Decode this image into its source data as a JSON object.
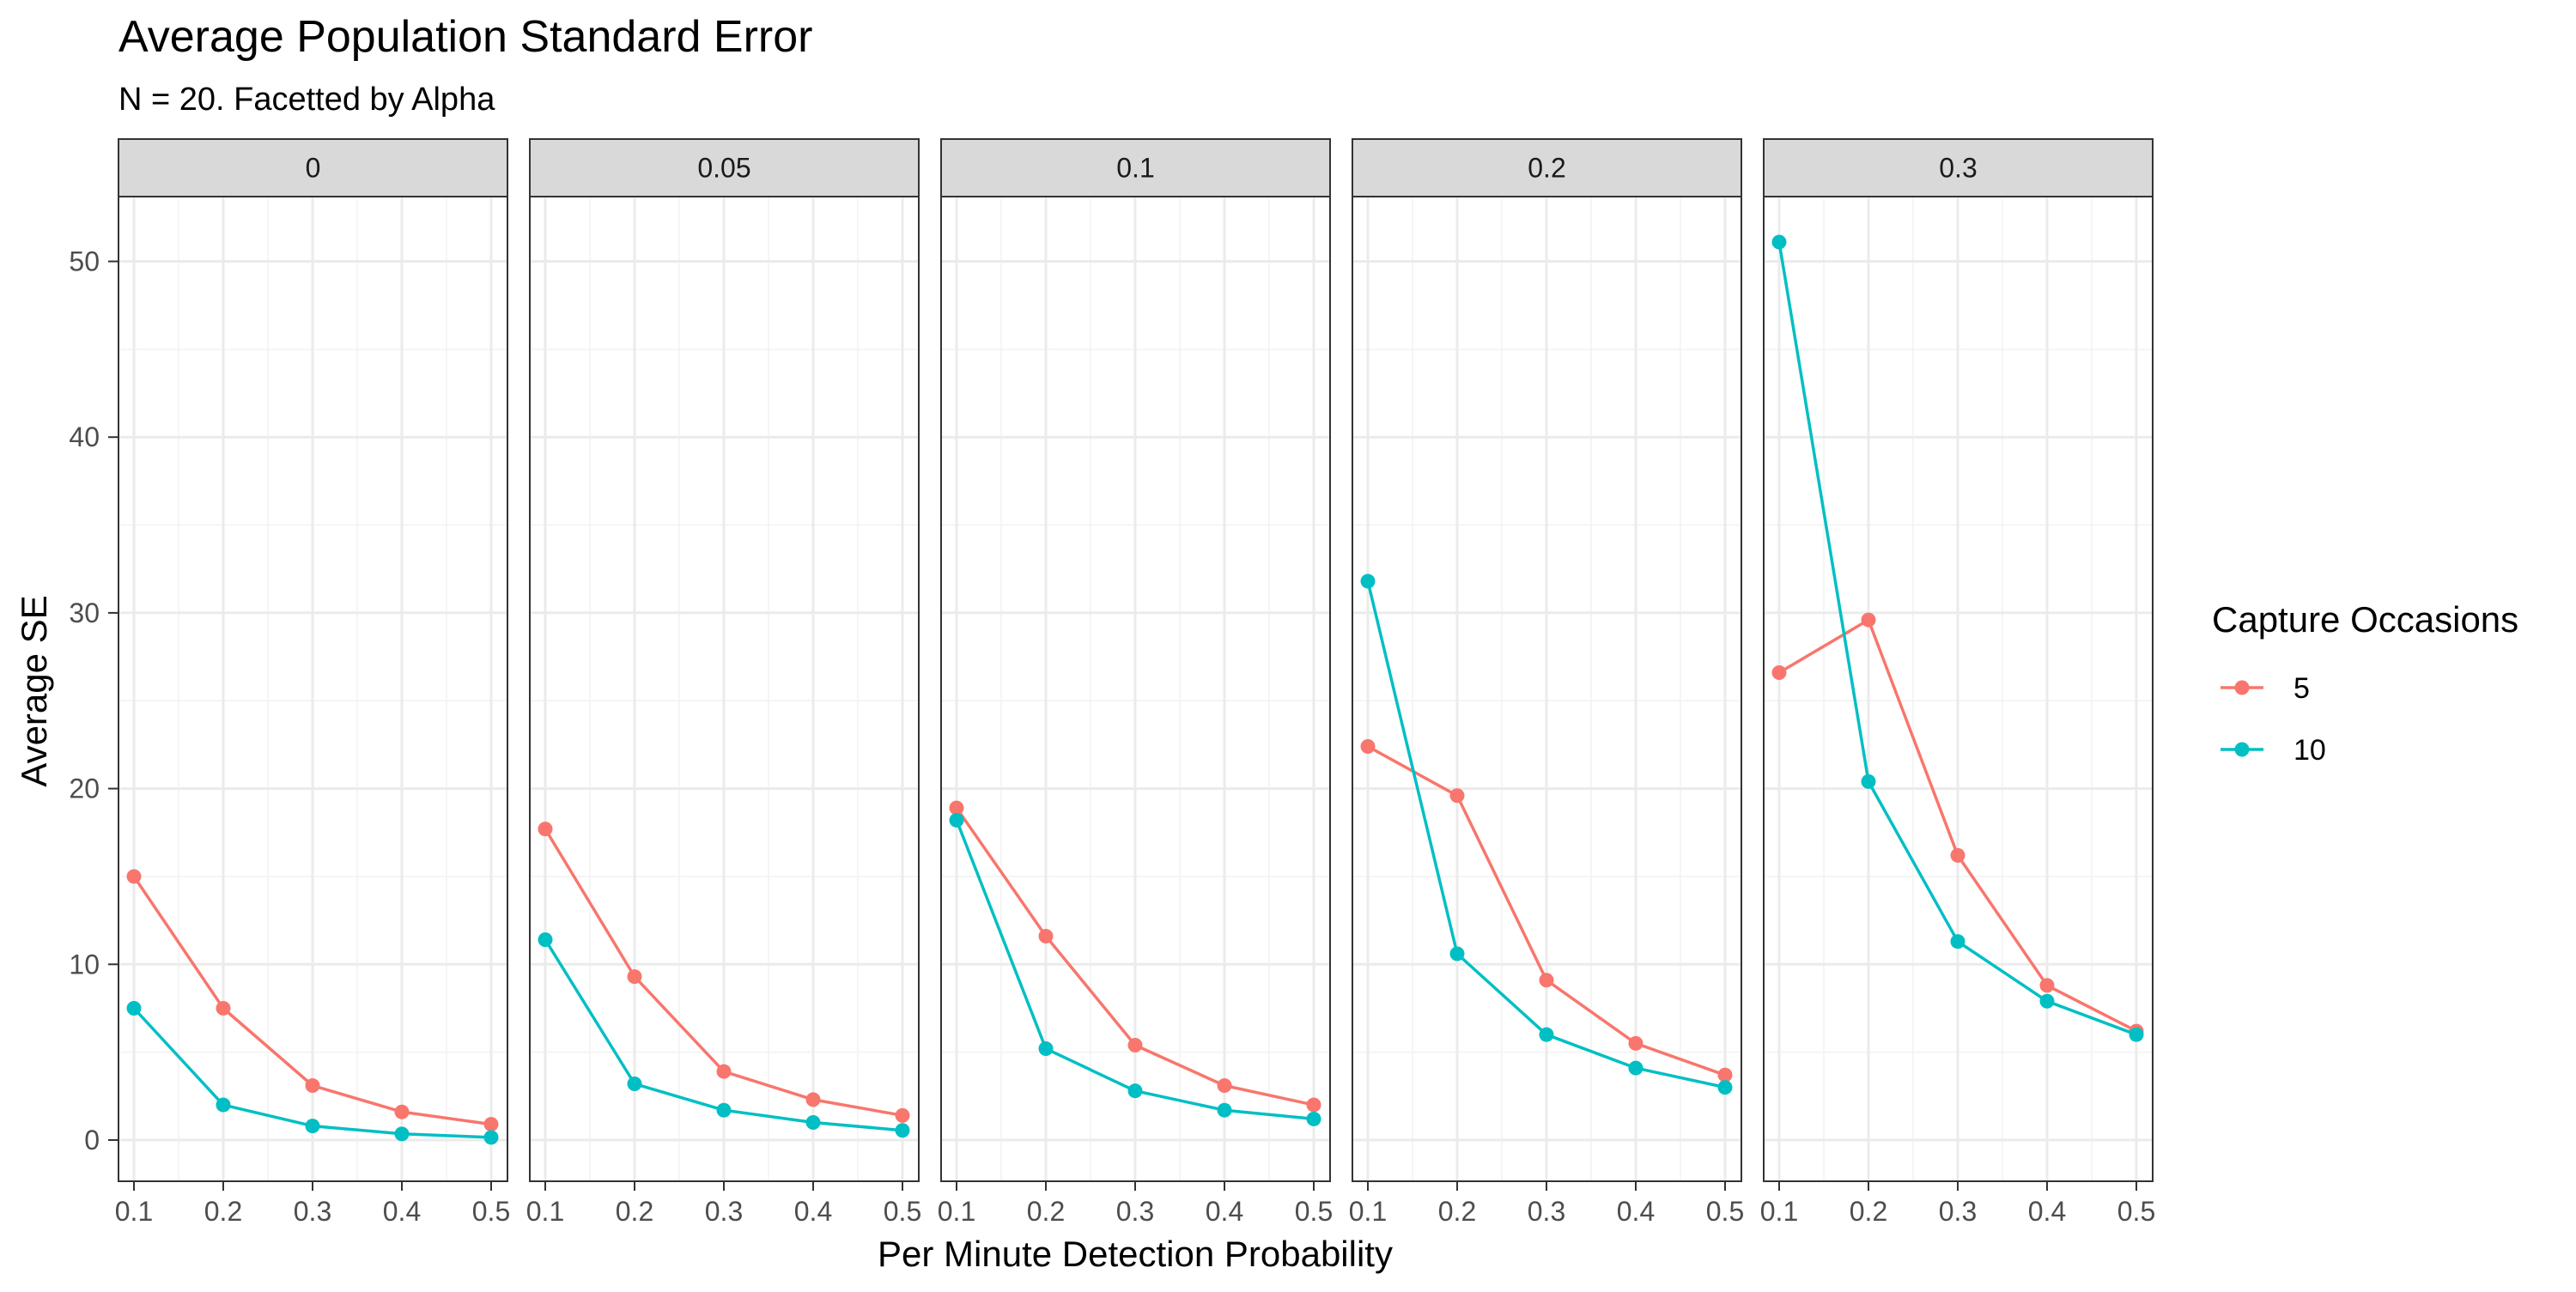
{
  "chart_data": {
    "type": "line",
    "title": "Average Population Standard Error",
    "subtitle": "N = 20. Facetted by Alpha",
    "xlabel": "Per Minute Detection Probability",
    "ylabel": "Average SE",
    "xlim": [
      0.1,
      0.5
    ],
    "ylim": [
      0,
      51
    ],
    "x_ticks": [
      "0.1",
      "0.2",
      "0.3",
      "0.4",
      "0.5"
    ],
    "y_ticks": [
      "0",
      "10",
      "20",
      "30",
      "40",
      "50"
    ],
    "grid": true,
    "legend": {
      "title": "Capture Occasions",
      "placement": "right",
      "entries": [
        "5",
        "10"
      ]
    },
    "x": [
      0.1,
      0.2,
      0.3,
      0.4,
      0.5
    ],
    "facets": [
      {
        "label": "0",
        "series": [
          {
            "name": "5",
            "color": "#F8766D",
            "values": [
              15.0,
              7.5,
              3.1,
              1.6,
              0.9
            ]
          },
          {
            "name": "10",
            "color": "#00BFC4",
            "values": [
              7.5,
              2.0,
              0.8,
              0.35,
              0.15
            ]
          }
        ]
      },
      {
        "label": "0.05",
        "series": [
          {
            "name": "5",
            "color": "#F8766D",
            "values": [
              17.7,
              9.3,
              3.9,
              2.3,
              1.4
            ]
          },
          {
            "name": "10",
            "color": "#00BFC4",
            "values": [
              11.4,
              3.2,
              1.7,
              1.0,
              0.55
            ]
          }
        ]
      },
      {
        "label": "0.1",
        "series": [
          {
            "name": "5",
            "color": "#F8766D",
            "values": [
              18.9,
              11.6,
              5.4,
              3.1,
              2.0
            ]
          },
          {
            "name": "10",
            "color": "#00BFC4",
            "values": [
              18.2,
              5.2,
              2.8,
              1.7,
              1.2
            ]
          }
        ]
      },
      {
        "label": "0.2",
        "series": [
          {
            "name": "5",
            "color": "#F8766D",
            "values": [
              22.4,
              19.6,
              9.1,
              5.5,
              3.7
            ]
          },
          {
            "name": "10",
            "color": "#00BFC4",
            "values": [
              31.8,
              10.6,
              6.0,
              4.1,
              3.0
            ]
          }
        ]
      },
      {
        "label": "0.3",
        "series": [
          {
            "name": "5",
            "color": "#F8766D",
            "values": [
              26.6,
              29.6,
              16.2,
              8.8,
              6.2
            ]
          },
          {
            "name": "10",
            "color": "#00BFC4",
            "values": [
              51.1,
              20.4,
              11.3,
              7.9,
              6.0
            ]
          }
        ]
      }
    ]
  }
}
